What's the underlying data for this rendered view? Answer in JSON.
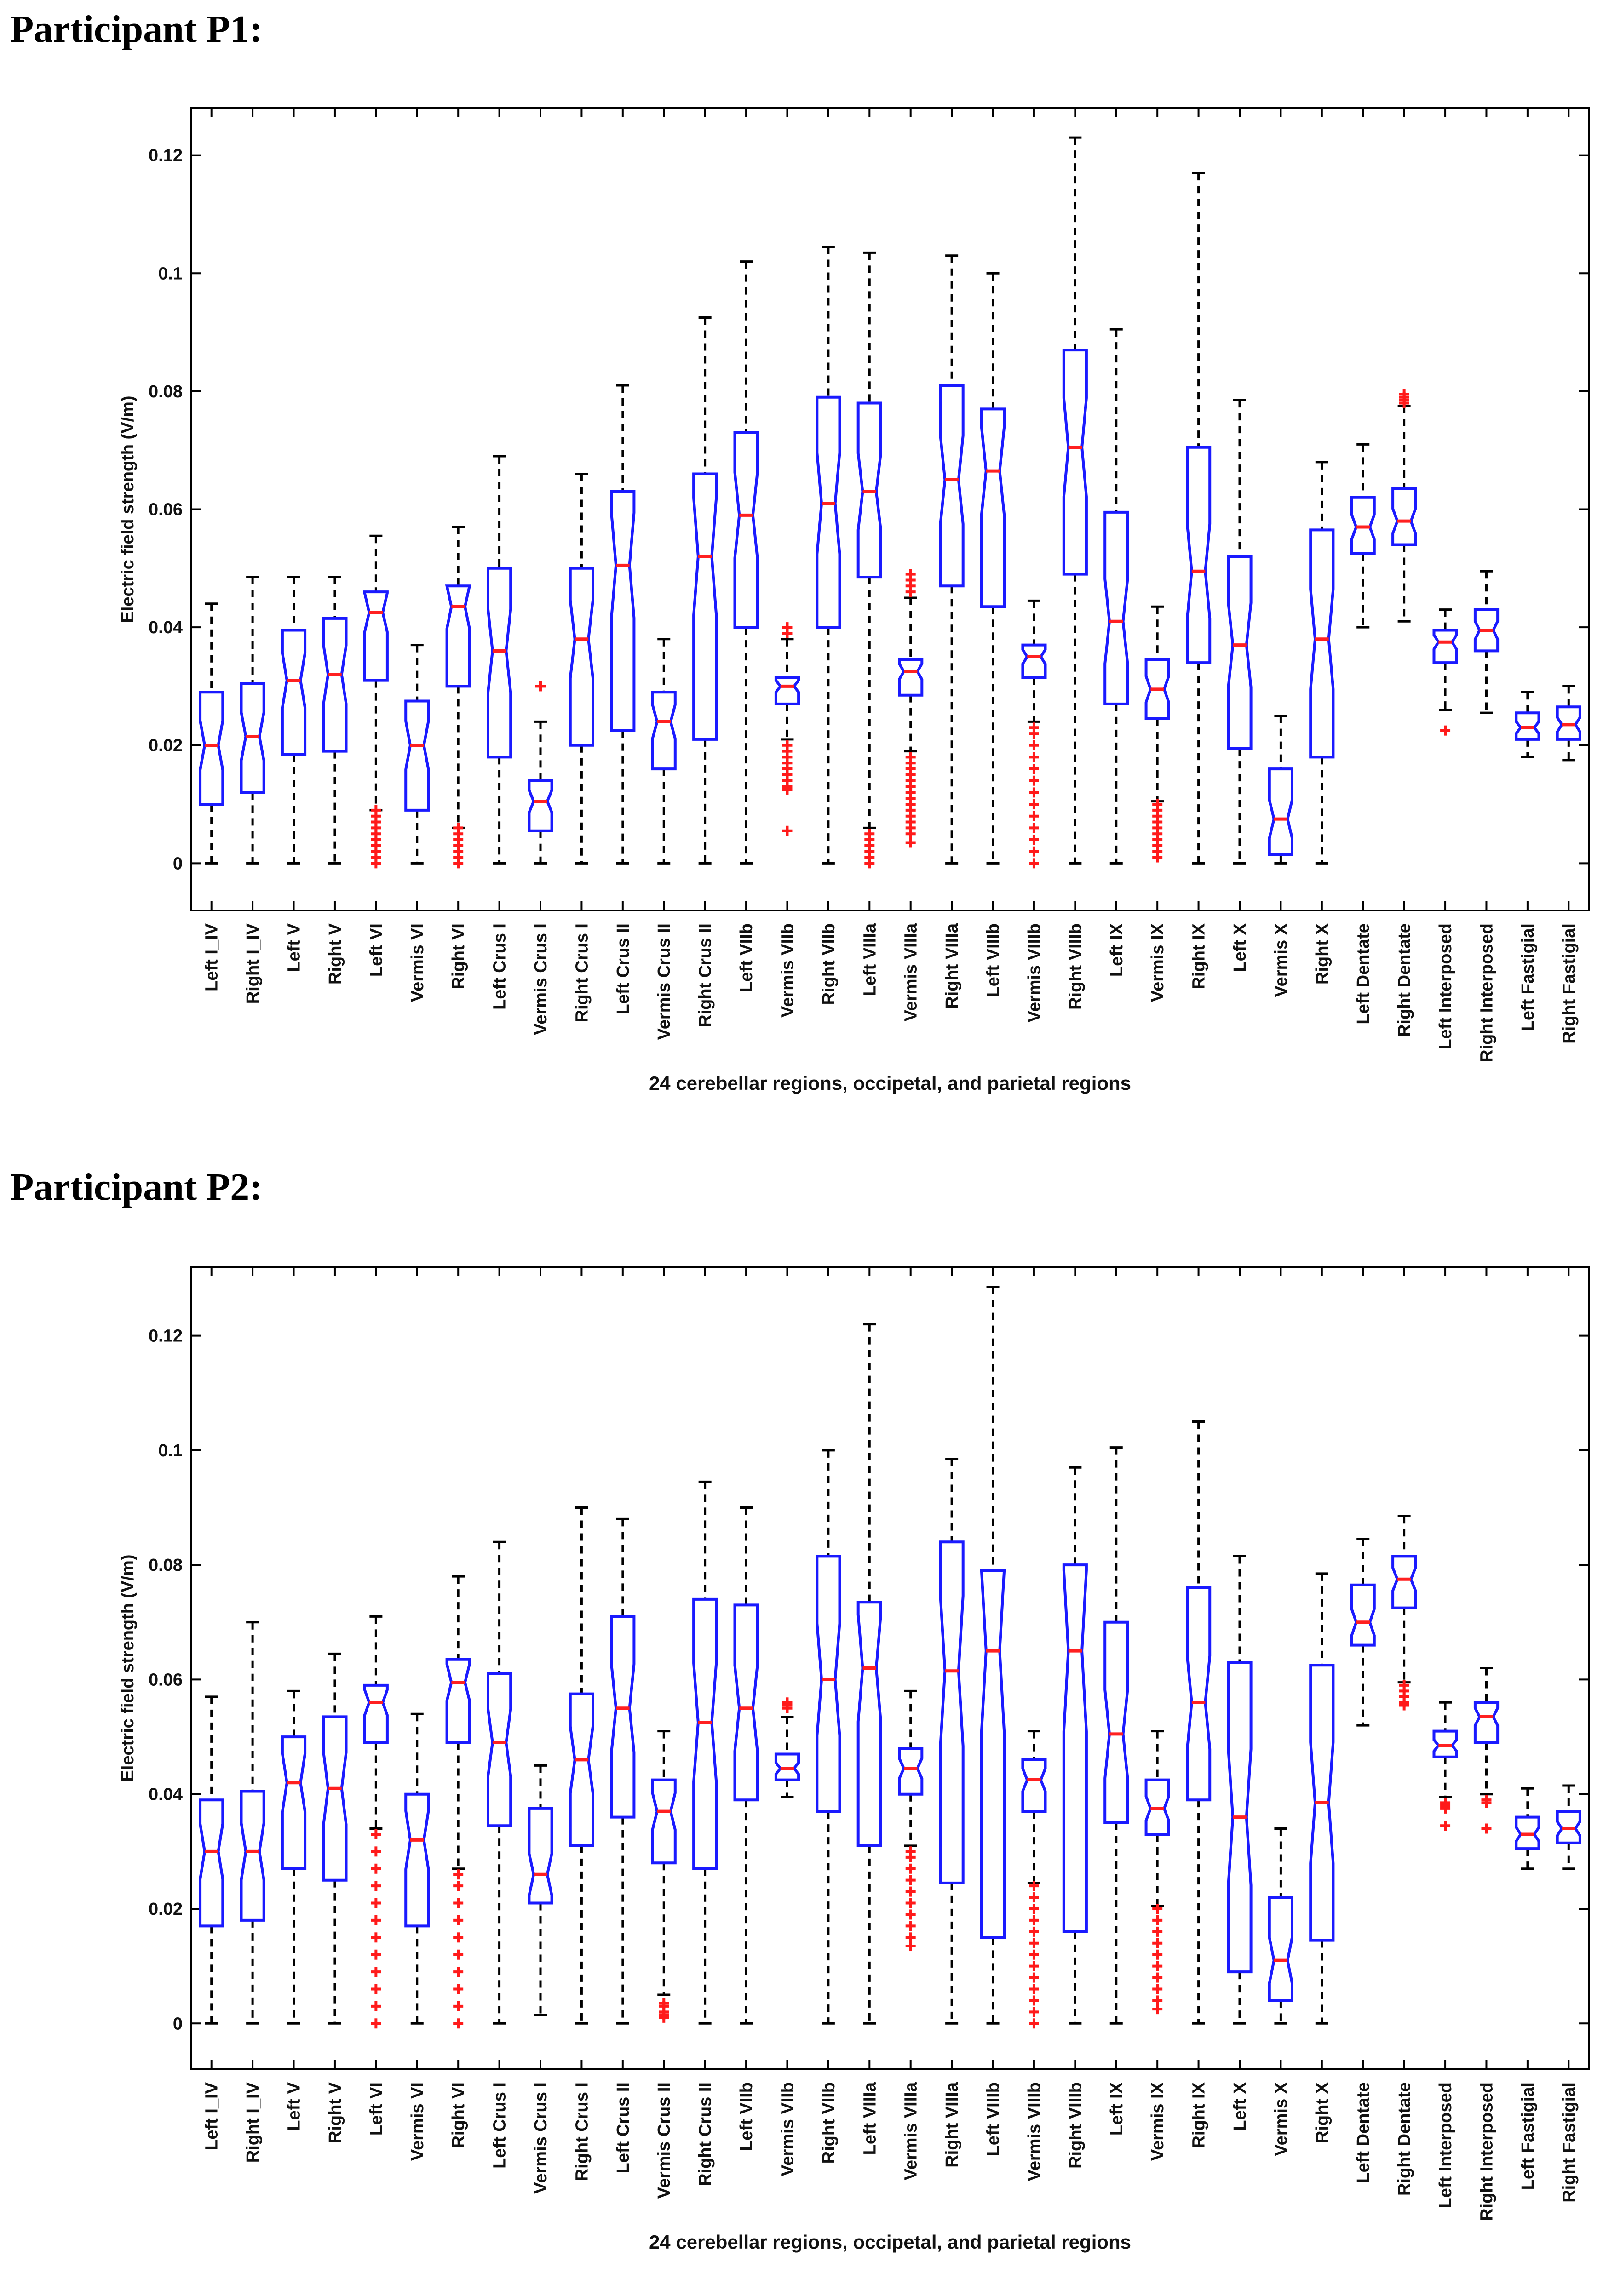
{
  "panels": [
    {
      "title": "Participant P1:"
    },
    {
      "title": "Participant P2:"
    }
  ],
  "colors": {
    "box": "#1a1aff",
    "median": "#ff2020",
    "outlier": "#ff1a1a",
    "whisker": "#000000"
  },
  "chart_data": [
    {
      "type": "box",
      "participant": "P1",
      "xlabel": "24 cerebellar regions, occipetal, and parietal regions",
      "ylabel": "Electric field strength (V/m)",
      "ylim": [
        -0.008,
        0.128
      ],
      "yticks": [
        0,
        0.02,
        0.04,
        0.06,
        0.08,
        0.1,
        0.12
      ],
      "ytick_labels": [
        "0",
        "0.02",
        "0.04",
        "0.06",
        "0.08",
        "0.1",
        "0.12"
      ],
      "categories": [
        "Left I_IV",
        "Right I_IV",
        "Left V",
        "Right V",
        "Left VI",
        "Vermis VI",
        "Right VI",
        "Left Crus I",
        "Vermis Crus I",
        "Right Crus I",
        "Left Crus II",
        "Vermis Crus II",
        "Right Crus II",
        "Left VIIb",
        "Vermis VIIb",
        "Right VIIb",
        "Left VIIIa",
        "Vermis VIIIa",
        "Right VIIIa",
        "Left VIIIb",
        "Vermis VIIIb",
        "Right VIIIb",
        "Left IX",
        "Vermis IX",
        "Right IX",
        "Left X",
        "Vermis X",
        "Right X",
        "Left Dentate",
        "Right Dentate",
        "Left Interposed",
        "Right Interposed",
        "Left Fastigial",
        "Right Fastigial"
      ],
      "boxes": [
        {
          "wlow": 0,
          "q1": 0.01,
          "median": 0.02,
          "q3": 0.029,
          "whigh": 0.044,
          "outliers": []
        },
        {
          "wlow": 0,
          "q1": 0.012,
          "median": 0.0215,
          "q3": 0.0305,
          "whigh": 0.0485,
          "outliers": []
        },
        {
          "wlow": 0,
          "q1": 0.0185,
          "median": 0.031,
          "q3": 0.0395,
          "whigh": 0.0485,
          "outliers": []
        },
        {
          "wlow": 0,
          "q1": 0.019,
          "median": 0.032,
          "q3": 0.0415,
          "whigh": 0.0485,
          "outliers": []
        },
        {
          "wlow": 0.009,
          "q1": 0.031,
          "median": 0.0425,
          "q3": 0.046,
          "whigh": 0.0555,
          "outliers": [
            0,
            0.001,
            0.002,
            0.003,
            0.004,
            0.005,
            0.006,
            0.007,
            0.008,
            0.009
          ]
        },
        {
          "wlow": 0,
          "q1": 0.009,
          "median": 0.02,
          "q3": 0.0275,
          "whigh": 0.037,
          "outliers": []
        },
        {
          "wlow": 0.006,
          "q1": 0.03,
          "median": 0.0435,
          "q3": 0.047,
          "whigh": 0.057,
          "outliers": [
            0,
            0.001,
            0.002,
            0.003,
            0.004,
            0.005,
            0.006
          ]
        },
        {
          "wlow": 0,
          "q1": 0.018,
          "median": 0.036,
          "q3": 0.05,
          "whigh": 0.069,
          "outliers": []
        },
        {
          "wlow": 0,
          "q1": 0.0055,
          "median": 0.0105,
          "q3": 0.014,
          "whigh": 0.024,
          "outliers": [
            0.03
          ]
        },
        {
          "wlow": 0,
          "q1": 0.02,
          "median": 0.038,
          "q3": 0.05,
          "whigh": 0.066,
          "outliers": []
        },
        {
          "wlow": 0,
          "q1": 0.0225,
          "median": 0.0505,
          "q3": 0.063,
          "whigh": 0.081,
          "outliers": []
        },
        {
          "wlow": 0,
          "q1": 0.016,
          "median": 0.024,
          "q3": 0.029,
          "whigh": 0.038,
          "outliers": []
        },
        {
          "wlow": 0,
          "q1": 0.021,
          "median": 0.052,
          "q3": 0.066,
          "whigh": 0.0925,
          "outliers": []
        },
        {
          "wlow": 0,
          "q1": 0.04,
          "median": 0.059,
          "q3": 0.073,
          "whigh": 0.102,
          "outliers": []
        },
        {
          "wlow": 0.021,
          "q1": 0.027,
          "median": 0.03,
          "q3": 0.0315,
          "whigh": 0.038,
          "outliers": [
            0.0055,
            0.0125,
            0.013,
            0.014,
            0.015,
            0.016,
            0.017,
            0.018,
            0.019,
            0.02,
            0.039,
            0.04
          ]
        },
        {
          "wlow": 0,
          "q1": 0.04,
          "median": 0.061,
          "q3": 0.079,
          "whigh": 0.1045,
          "outliers": []
        },
        {
          "wlow": 0.006,
          "q1": 0.0485,
          "median": 0.063,
          "q3": 0.078,
          "whigh": 0.1035,
          "outliers": [
            0,
            0.001,
            0.002,
            0.003,
            0.004,
            0.005
          ]
        },
        {
          "wlow": 0.019,
          "q1": 0.0285,
          "median": 0.0325,
          "q3": 0.0345,
          "whigh": 0.045,
          "outliers": [
            0.0035,
            0.005,
            0.006,
            0.007,
            0.008,
            0.009,
            0.01,
            0.011,
            0.012,
            0.013,
            0.014,
            0.015,
            0.016,
            0.017,
            0.018,
            0.046,
            0.047,
            0.048,
            0.049
          ]
        },
        {
          "wlow": 0,
          "q1": 0.047,
          "median": 0.065,
          "q3": 0.081,
          "whigh": 0.103,
          "outliers": []
        },
        {
          "wlow": 0,
          "q1": 0.0435,
          "median": 0.0665,
          "q3": 0.077,
          "whigh": 0.1,
          "outliers": []
        },
        {
          "wlow": 0.024,
          "q1": 0.0315,
          "median": 0.035,
          "q3": 0.037,
          "whigh": 0.0445,
          "outliers": [
            0,
            0.002,
            0.004,
            0.006,
            0.008,
            0.01,
            0.012,
            0.014,
            0.016,
            0.018,
            0.02,
            0.022,
            0.023
          ]
        },
        {
          "wlow": 0,
          "q1": 0.049,
          "median": 0.0705,
          "q3": 0.087,
          "whigh": 0.123,
          "outliers": []
        },
        {
          "wlow": 0,
          "q1": 0.027,
          "median": 0.041,
          "q3": 0.0595,
          "whigh": 0.0905,
          "outliers": []
        },
        {
          "wlow": 0.0105,
          "q1": 0.0245,
          "median": 0.0295,
          "q3": 0.0345,
          "whigh": 0.0435,
          "outliers": [
            0.001,
            0.002,
            0.003,
            0.004,
            0.005,
            0.006,
            0.007,
            0.008,
            0.009,
            0.01
          ]
        },
        {
          "wlow": 0,
          "q1": 0.034,
          "median": 0.0495,
          "q3": 0.0705,
          "whigh": 0.117,
          "outliers": []
        },
        {
          "wlow": 0,
          "q1": 0.0195,
          "median": 0.037,
          "q3": 0.052,
          "whigh": 0.0785,
          "outliers": []
        },
        {
          "wlow": 0,
          "q1": 0.0015,
          "median": 0.0075,
          "q3": 0.016,
          "whigh": 0.025,
          "outliers": []
        },
        {
          "wlow": 0,
          "q1": 0.018,
          "median": 0.038,
          "q3": 0.0565,
          "whigh": 0.068,
          "outliers": []
        },
        {
          "wlow": 0.04,
          "q1": 0.0525,
          "median": 0.057,
          "q3": 0.062,
          "whigh": 0.071,
          "outliers": []
        },
        {
          "wlow": 0.041,
          "q1": 0.054,
          "median": 0.058,
          "q3": 0.0635,
          "whigh": 0.0775,
          "outliers": [
            0.078,
            0.0785,
            0.079,
            0.0795
          ]
        },
        {
          "wlow": 0.026,
          "q1": 0.034,
          "median": 0.0375,
          "q3": 0.0395,
          "whigh": 0.043,
          "outliers": [
            0.0225
          ]
        },
        {
          "wlow": 0.0255,
          "q1": 0.036,
          "median": 0.0395,
          "q3": 0.043,
          "whigh": 0.0495,
          "outliers": []
        },
        {
          "wlow": 0.018,
          "q1": 0.021,
          "median": 0.023,
          "q3": 0.0255,
          "whigh": 0.029,
          "outliers": []
        },
        {
          "wlow": 0.0175,
          "q1": 0.021,
          "median": 0.0235,
          "q3": 0.0265,
          "whigh": 0.03,
          "outliers": []
        }
      ]
    },
    {
      "type": "box",
      "participant": "P2",
      "xlabel": "24 cerebellar regions, occipetal, and parietal regions",
      "ylabel": "Electric field strength (V/m)",
      "ylim": [
        -0.008,
        0.132
      ],
      "yticks": [
        0,
        0.02,
        0.04,
        0.06,
        0.08,
        0.1,
        0.12
      ],
      "ytick_labels": [
        "0",
        "0.02",
        "0.04",
        "0.06",
        "0.08",
        "0.1",
        "0.12"
      ],
      "categories": [
        "Left I_IV",
        "Right I_IV",
        "Left V",
        "Right V",
        "Left VI",
        "Vermis VI",
        "Right VI",
        "Left Crus I",
        "Vermis Crus I",
        "Right Crus I",
        "Left Crus II",
        "Vermis Crus II",
        "Right Crus II",
        "Left VIIb",
        "Vermis VIIb",
        "Right VIIb",
        "Left VIIIa",
        "Vermis VIIIa",
        "Right VIIIa",
        "Left VIIIb",
        "Vermis VIIIb",
        "Right VIIIb",
        "Left IX",
        "Vermis IX",
        "Right IX",
        "Left X",
        "Vermis X",
        "Right X",
        "Left Dentate",
        "Right Dentate",
        "Left Interposed",
        "Right Interposed",
        "Left Fastigial",
        "Right Fastigial"
      ],
      "boxes": [
        {
          "wlow": 0,
          "q1": 0.017,
          "median": 0.03,
          "q3": 0.039,
          "whigh": 0.057,
          "outliers": []
        },
        {
          "wlow": 0,
          "q1": 0.018,
          "median": 0.03,
          "q3": 0.0405,
          "whigh": 0.07,
          "outliers": []
        },
        {
          "wlow": 0,
          "q1": 0.027,
          "median": 0.042,
          "q3": 0.05,
          "whigh": 0.058,
          "outliers": []
        },
        {
          "wlow": 0,
          "q1": 0.025,
          "median": 0.041,
          "q3": 0.0535,
          "whigh": 0.0645,
          "outliers": []
        },
        {
          "wlow": 0.034,
          "q1": 0.049,
          "median": 0.056,
          "q3": 0.059,
          "whigh": 0.071,
          "outliers": [
            0,
            0.003,
            0.006,
            0.009,
            0.012,
            0.015,
            0.018,
            0.021,
            0.024,
            0.027,
            0.03,
            0.033
          ]
        },
        {
          "wlow": 0,
          "q1": 0.017,
          "median": 0.032,
          "q3": 0.04,
          "whigh": 0.054,
          "outliers": []
        },
        {
          "wlow": 0.027,
          "q1": 0.049,
          "median": 0.0595,
          "q3": 0.0635,
          "whigh": 0.078,
          "outliers": [
            0,
            0.003,
            0.006,
            0.009,
            0.012,
            0.015,
            0.018,
            0.021,
            0.024,
            0.026
          ]
        },
        {
          "wlow": 0,
          "q1": 0.0345,
          "median": 0.049,
          "q3": 0.061,
          "whigh": 0.084,
          "outliers": []
        },
        {
          "wlow": 0.0015,
          "q1": 0.021,
          "median": 0.026,
          "q3": 0.0375,
          "whigh": 0.045,
          "outliers": []
        },
        {
          "wlow": 0,
          "q1": 0.031,
          "median": 0.046,
          "q3": 0.0575,
          "whigh": 0.09,
          "outliers": []
        },
        {
          "wlow": 0,
          "q1": 0.036,
          "median": 0.055,
          "q3": 0.071,
          "whigh": 0.088,
          "outliers": []
        },
        {
          "wlow": 0.005,
          "q1": 0.028,
          "median": 0.037,
          "q3": 0.0425,
          "whigh": 0.051,
          "outliers": [
            0.001,
            0.0015,
            0.002,
            0.003,
            0.0035
          ]
        },
        {
          "wlow": 0,
          "q1": 0.027,
          "median": 0.0525,
          "q3": 0.074,
          "whigh": 0.0945,
          "outliers": []
        },
        {
          "wlow": 0,
          "q1": 0.039,
          "median": 0.055,
          "q3": 0.073,
          "whigh": 0.09,
          "outliers": []
        },
        {
          "wlow": 0.0395,
          "q1": 0.0425,
          "median": 0.0445,
          "q3": 0.047,
          "whigh": 0.0535,
          "outliers": [
            0.055,
            0.0555,
            0.056
          ]
        },
        {
          "wlow": 0,
          "q1": 0.037,
          "median": 0.06,
          "q3": 0.0815,
          "whigh": 0.1,
          "outliers": []
        },
        {
          "wlow": 0,
          "q1": 0.031,
          "median": 0.062,
          "q3": 0.0735,
          "whigh": 0.122,
          "outliers": []
        },
        {
          "wlow": 0.031,
          "q1": 0.04,
          "median": 0.0445,
          "q3": 0.048,
          "whigh": 0.058,
          "outliers": [
            0.0135,
            0.015,
            0.017,
            0.019,
            0.021,
            0.023,
            0.025,
            0.027,
            0.029,
            0.03
          ]
        },
        {
          "wlow": 0,
          "q1": 0.0245,
          "median": 0.0615,
          "q3": 0.084,
          "whigh": 0.0985,
          "outliers": []
        },
        {
          "wlow": 0,
          "q1": 0.015,
          "median": 0.065,
          "q3": 0.079,
          "whigh": 0.1285,
          "outliers": []
        },
        {
          "wlow": 0.0245,
          "q1": 0.037,
          "median": 0.0425,
          "q3": 0.046,
          "whigh": 0.051,
          "outliers": [
            0,
            0.002,
            0.004,
            0.006,
            0.008,
            0.01,
            0.012,
            0.014,
            0.016,
            0.018,
            0.02,
            0.022,
            0.024
          ]
        },
        {
          "wlow": 0,
          "q1": 0.016,
          "median": 0.065,
          "q3": 0.08,
          "whigh": 0.097,
          "outliers": []
        },
        {
          "wlow": 0,
          "q1": 0.035,
          "median": 0.0505,
          "q3": 0.07,
          "whigh": 0.1005,
          "outliers": []
        },
        {
          "wlow": 0.0205,
          "q1": 0.033,
          "median": 0.0375,
          "q3": 0.0425,
          "whigh": 0.051,
          "outliers": [
            0.0025,
            0.004,
            0.006,
            0.008,
            0.01,
            0.012,
            0.014,
            0.016,
            0.018,
            0.02
          ]
        },
        {
          "wlow": 0,
          "q1": 0.039,
          "median": 0.056,
          "q3": 0.076,
          "whigh": 0.105,
          "outliers": []
        },
        {
          "wlow": 0,
          "q1": 0.009,
          "median": 0.036,
          "q3": 0.063,
          "whigh": 0.0815,
          "outliers": []
        },
        {
          "wlow": 0,
          "q1": 0.004,
          "median": 0.011,
          "q3": 0.022,
          "whigh": 0.034,
          "outliers": []
        },
        {
          "wlow": 0,
          "q1": 0.0145,
          "median": 0.0385,
          "q3": 0.0625,
          "whigh": 0.0785,
          "outliers": []
        },
        {
          "wlow": 0.052,
          "q1": 0.066,
          "median": 0.07,
          "q3": 0.0765,
          "whigh": 0.0845,
          "outliers": []
        },
        {
          "wlow": 0.0595,
          "q1": 0.0725,
          "median": 0.0775,
          "q3": 0.0815,
          "whigh": 0.0885,
          "outliers": [
            0.0555,
            0.056,
            0.057,
            0.058,
            0.059
          ]
        },
        {
          "wlow": 0.0395,
          "q1": 0.0465,
          "median": 0.0485,
          "q3": 0.051,
          "whigh": 0.056,
          "outliers": [
            0.0345,
            0.0375,
            0.038,
            0.0385
          ]
        },
        {
          "wlow": 0.04,
          "q1": 0.049,
          "median": 0.0535,
          "q3": 0.056,
          "whigh": 0.062,
          "outliers": [
            0.034,
            0.0385,
            0.039
          ]
        },
        {
          "wlow": 0.027,
          "q1": 0.0305,
          "median": 0.033,
          "q3": 0.036,
          "whigh": 0.041,
          "outliers": []
        },
        {
          "wlow": 0.027,
          "q1": 0.0315,
          "median": 0.034,
          "q3": 0.037,
          "whigh": 0.0415,
          "outliers": []
        }
      ]
    }
  ]
}
